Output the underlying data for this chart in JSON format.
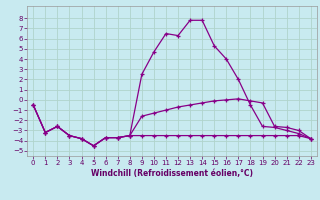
{
  "xlabel": "Windchill (Refroidissement éolien,°C)",
  "background_color": "#c8eaf0",
  "grid_color": "#b0d4cc",
  "line_color": "#880088",
  "x": [
    0,
    1,
    2,
    3,
    4,
    5,
    6,
    7,
    8,
    9,
    10,
    11,
    12,
    13,
    14,
    15,
    16,
    17,
    18,
    19,
    20,
    21,
    22,
    23
  ],
  "line1": [
    -0.5,
    -3.2,
    -2.6,
    -3.5,
    -3.8,
    -4.5,
    -3.7,
    -3.7,
    -3.5,
    -3.5,
    -3.5,
    -3.5,
    -3.5,
    -3.5,
    -3.5,
    -3.5,
    -3.5,
    -3.5,
    -3.5,
    -3.5,
    -3.5,
    -3.5,
    -3.5,
    -3.8
  ],
  "line2": [
    -0.5,
    -3.2,
    -2.6,
    -3.5,
    -3.8,
    -4.5,
    -3.7,
    -3.7,
    -3.5,
    -1.6,
    -1.3,
    -1.0,
    -0.7,
    -0.5,
    -0.3,
    -0.1,
    0.0,
    0.1,
    -0.1,
    -0.3,
    -2.6,
    -2.7,
    -3.0,
    -3.8
  ],
  "line3": [
    -0.5,
    -3.2,
    -2.6,
    -3.5,
    -3.8,
    -4.5,
    -3.7,
    -3.7,
    -3.5,
    2.5,
    4.7,
    6.5,
    6.3,
    7.8,
    7.8,
    5.3,
    4.0,
    2.0,
    -0.5,
    -2.6,
    -2.7,
    -3.0,
    -3.3,
    -3.8
  ],
  "xlim": [
    -0.5,
    23.5
  ],
  "ylim": [
    -5.5,
    9.2
  ],
  "yticks": [
    -5,
    -4,
    -3,
    -2,
    -1,
    0,
    1,
    2,
    3,
    4,
    5,
    6,
    7,
    8
  ],
  "xticks": [
    0,
    1,
    2,
    3,
    4,
    5,
    6,
    7,
    8,
    9,
    10,
    11,
    12,
    13,
    14,
    15,
    16,
    17,
    18,
    19,
    20,
    21,
    22,
    23
  ]
}
